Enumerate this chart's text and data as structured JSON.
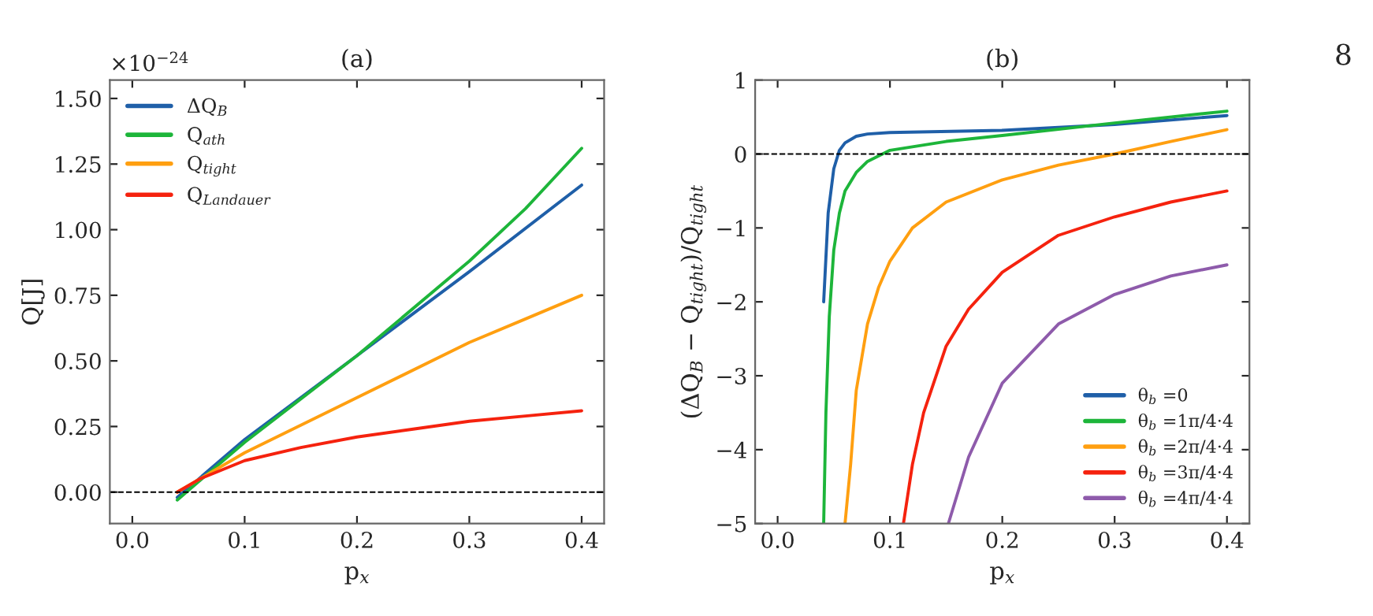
{
  "chart_data": [
    {
      "type": "line",
      "title": "(a)",
      "xlabel": "p$_{x}$",
      "ylabel": "Q[J]",
      "xlim": [
        -0.02,
        0.42
      ],
      "ylim": [
        -0.12,
        1.57
      ],
      "xticks": [
        {
          "value": 0,
          "label": "0.0"
        },
        0.1,
        0.2,
        0.3,
        0.4
      ],
      "yticks": [
        {
          "value": 0,
          "label": "0.00"
        },
        0.25,
        {
          "value": 0.5,
          "label": "0.50"
        },
        0.75,
        {
          "value": 1,
          "label": "1.00"
        },
        1.25,
        {
          "value": 1.5,
          "label": "1.50"
        }
      ],
      "grid": false,
      "legend": "top left",
      "ref_lines": [
        {
          "axis": "y",
          "value": 0,
          "color": "#000000",
          "line_style": "dashed"
        }
      ],
      "annotations": [
        "×10$^{−24}$"
      ],
      "series": [
        {
          "name": "ΔQ$_{B}$",
          "color": "#1f5fa8",
          "x": [
            0.04,
            0.1,
            0.2,
            0.3,
            0.4
          ],
          "values": [
            -0.02,
            0.2,
            0.52,
            0.84,
            1.17
          ]
        },
        {
          "name": "Q$_{ath}$",
          "color": "#1db53a",
          "x": [
            0.04,
            0.1,
            0.2,
            0.3,
            0.35,
            0.4
          ],
          "values": [
            -0.03,
            0.19,
            0.52,
            0.88,
            1.08,
            1.31
          ]
        },
        {
          "name": "Q$_{tight}$",
          "color": "#ff9f10",
          "x": [
            0.04,
            0.1,
            0.2,
            0.3,
            0.35,
            0.4
          ],
          "values": [
            0,
            0.15,
            0.36,
            0.57,
            0.66,
            0.75
          ]
        },
        {
          "name": "Q$_{Landauer}$",
          "color": "#f5220e",
          "x": [
            0.04,
            0.06,
            0.1,
            0.15,
            0.2,
            0.25,
            0.3,
            0.35,
            0.4
          ],
          "values": [
            0,
            0.05,
            0.12,
            0.17,
            0.21,
            0.24,
            0.27,
            0.29,
            0.31
          ]
        }
      ]
    },
    {
      "type": "line",
      "title": "(b)",
      "xlabel": "p$_{x}$",
      "ylabel": "(ΔQ$_{B}$ − Q$_{tight}$)/Q$_{tight}$",
      "xlim": [
        -0.02,
        0.42
      ],
      "ylim": [
        -5,
        1
      ],
      "xticks": [
        {
          "value": 0,
          "label": "0.0"
        },
        0.1,
        0.2,
        0.3,
        0.4
      ],
      "yticks": [
        {
          "value": -5,
          "label": "−5"
        },
        {
          "value": -4,
          "label": "−4"
        },
        {
          "value": -3,
          "label": "−3"
        },
        {
          "value": -2,
          "label": "−2"
        },
        {
          "value": -1,
          "label": "−1"
        },
        0,
        1
      ],
      "grid": false,
      "legend": "bottom right",
      "ref_lines": [
        {
          "axis": "y",
          "value": 0,
          "color": "#000000",
          "line_style": "dashed"
        }
      ],
      "annotations": [
        "8"
      ],
      "series": [
        {
          "name": "θ$_{b}$ =0",
          "color": "#1f5fa8",
          "x": [
            0.041,
            0.045,
            0.05,
            0.055,
            0.06,
            0.07,
            0.08,
            0.1,
            0.2,
            0.3,
            0.4
          ],
          "values": [
            -2,
            -0.8,
            -0.2,
            0.05,
            0.15,
            0.24,
            0.27,
            0.29,
            0.32,
            0.4,
            0.52
          ]
        },
        {
          "name": "θ$_{b}$ =1π/4·4",
          "color": "#1db53a",
          "x": [
            0.041,
            0.043,
            0.046,
            0.05,
            0.055,
            0.06,
            0.07,
            0.08,
            0.1,
            0.15,
            0.2,
            0.3,
            0.4
          ],
          "values": [
            -5,
            -3.5,
            -2.2,
            -1.3,
            -0.8,
            -0.5,
            -0.25,
            -0.1,
            0.05,
            0.17,
            0.25,
            0.42,
            0.58
          ]
        },
        {
          "name": "θ$_{b}$ =2π/4·4",
          "color": "#ff9f10",
          "x": [
            0.06,
            0.065,
            0.07,
            0.08,
            0.09,
            0.1,
            0.12,
            0.15,
            0.2,
            0.25,
            0.3,
            0.35,
            0.4
          ],
          "values": [
            -5,
            -4.2,
            -3.2,
            -2.3,
            -1.8,
            -1.45,
            -1.0,
            -0.65,
            -0.35,
            -0.15,
            0.0,
            0.17,
            0.33
          ]
        },
        {
          "name": "θ$_{b}$ =3π/4·4",
          "color": "#f5220e",
          "x": [
            0.112,
            0.12,
            0.13,
            0.15,
            0.17,
            0.2,
            0.25,
            0.3,
            0.35,
            0.4
          ],
          "values": [
            -5,
            -4.2,
            -3.5,
            -2.6,
            -2.1,
            -1.6,
            -1.1,
            -0.85,
            -0.65,
            -0.5
          ]
        },
        {
          "name": "θ$_{b}$ =4π/4·4",
          "color": "#8e5bab",
          "x": [
            0.152,
            0.17,
            0.2,
            0.25,
            0.3,
            0.35,
            0.4
          ],
          "values": [
            -5,
            -4.1,
            -3.1,
            -2.3,
            -1.9,
            -1.65,
            -1.5
          ]
        }
      ]
    }
  ]
}
